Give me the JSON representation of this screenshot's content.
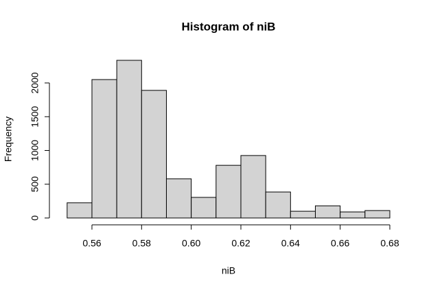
{
  "chart_data": {
    "type": "histogram",
    "title": "Histogram of niB",
    "xlabel": "niB",
    "ylabel": "Frequency",
    "bins": [
      0.55,
      0.56,
      0.57,
      0.58,
      0.59,
      0.6,
      0.61,
      0.62,
      0.63,
      0.64,
      0.65,
      0.66,
      0.67,
      0.68
    ],
    "values": [
      225,
      2050,
      2335,
      1890,
      580,
      305,
      780,
      925,
      385,
      100,
      180,
      90,
      110
    ],
    "color": "#d3d3d3",
    "xlim": [
      0.55,
      0.68
    ],
    "xticks": [
      0.56,
      0.58,
      {
        "value": 0.6,
        "label": "0.60"
      },
      0.62,
      0.64,
      0.66,
      0.68
    ],
    "ylim": [
      0,
      2335
    ],
    "yticks": [
      0,
      500,
      1000,
      1500,
      2000
    ]
  }
}
